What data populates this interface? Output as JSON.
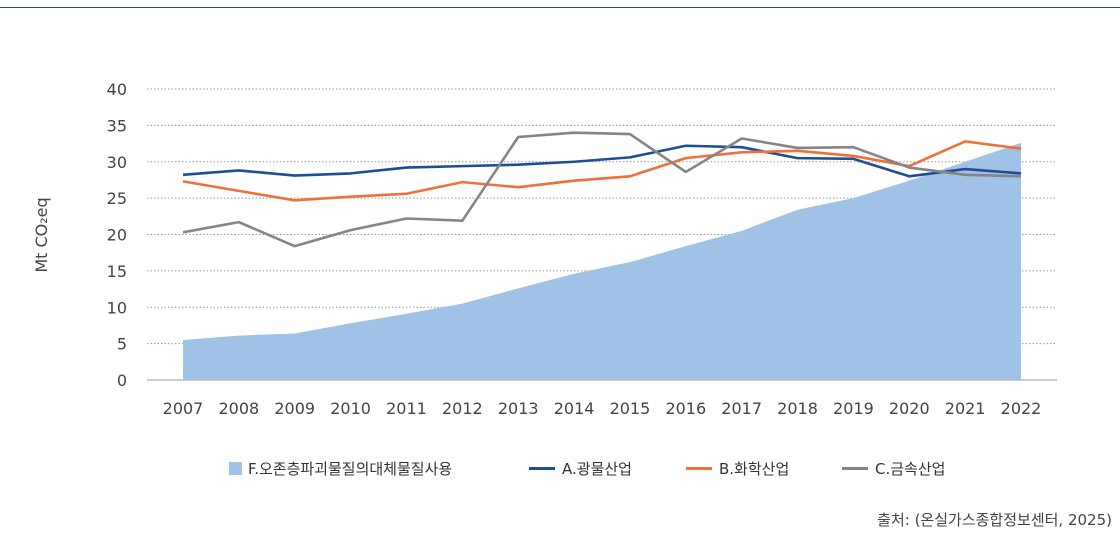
{
  "chart_data": {
    "type": "line",
    "ylabel": "Mt CO₂eq",
    "ylim": [
      0,
      40
    ],
    "yticks": [
      0,
      5,
      10,
      15,
      20,
      25,
      30,
      35,
      40
    ],
    "grid": true,
    "legend_position": "bottom",
    "categories": [
      "2007",
      "2008",
      "2009",
      "2010",
      "2011",
      "2012",
      "2013",
      "2014",
      "2015",
      "2016",
      "2017",
      "2018",
      "2019",
      "2020",
      "2021",
      "2022"
    ],
    "series": [
      {
        "name": "F.오존층파괴물질의대체물질사용",
        "kind": "area",
        "color": "#9fc2e6",
        "values": [
          5.5,
          6.1,
          6.4,
          7.8,
          9.1,
          10.5,
          12.6,
          14.6,
          16.2,
          18.4,
          20.5,
          23.4,
          25.0,
          27.4,
          30.0,
          32.6
        ]
      },
      {
        "name": "A.광물산업",
        "kind": "line",
        "color": "#1f4e96",
        "values": [
          28.2,
          28.8,
          28.1,
          28.4,
          29.2,
          29.4,
          29.6,
          30.0,
          30.6,
          32.2,
          32.0,
          30.5,
          30.4,
          28.0,
          29.0,
          28.4
        ]
      },
      {
        "name": "B.화학산업",
        "kind": "line",
        "color": "#f07038",
        "values": [
          27.3,
          26.0,
          24.7,
          25.2,
          25.6,
          27.2,
          26.5,
          27.4,
          28.0,
          30.5,
          31.3,
          31.5,
          30.8,
          29.4,
          32.8,
          31.8
        ]
      },
      {
        "name": "C.금속산업",
        "kind": "line",
        "color": "#858585",
        "values": [
          20.3,
          21.7,
          18.4,
          20.6,
          22.2,
          21.9,
          33.4,
          34.0,
          33.8,
          28.6,
          33.2,
          31.9,
          32.0,
          29.2,
          28.2,
          28.0
        ]
      }
    ]
  },
  "source_text": "출처: (온실가스종합정보센터, 2025)"
}
